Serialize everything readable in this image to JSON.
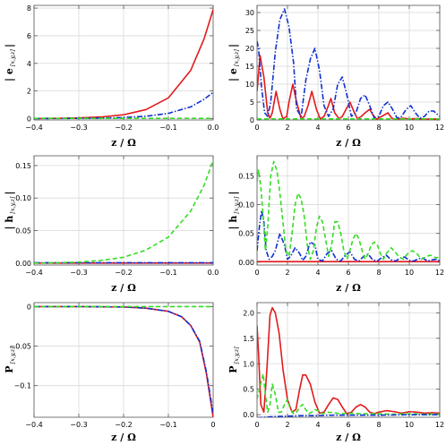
{
  "chart_data": [
    {
      "type": "line",
      "panel": "top-left",
      "ylabel_main": "| e",
      "ylabel_sub": "[x,y,z]",
      "ylabel_end": "|",
      "xlabel": "z / Ω",
      "xlim": [
        -0.4,
        0.0
      ],
      "ylim": [
        -0.1,
        8.2
      ],
      "xticks": [
        -0.4,
        -0.3,
        -0.2,
        -0.1,
        0.0
      ],
      "xtick_labels": [
        "−0.4",
        "−0.3",
        "−0.2",
        "−0.1",
        "0.0"
      ],
      "yticks": [
        0,
        2,
        4,
        6,
        8
      ],
      "ytick_labels": [
        "0",
        "2",
        "4",
        "6",
        "8"
      ],
      "grid": true,
      "series": [
        {
          "color": "#e31a1c",
          "dash": "",
          "x": [
            -0.4,
            -0.35,
            -0.3,
            -0.25,
            -0.2,
            -0.15,
            -0.1,
            -0.05,
            -0.02,
            0.0
          ],
          "y": [
            0.01,
            0.02,
            0.05,
            0.12,
            0.28,
            0.65,
            1.5,
            3.5,
            5.8,
            7.9
          ]
        },
        {
          "color": "#1030d0",
          "dash": "6,2,1.5,2",
          "x": [
            -0.4,
            -0.35,
            -0.3,
            -0.25,
            -0.2,
            -0.15,
            -0.1,
            -0.05,
            -0.02,
            0.0
          ],
          "y": [
            0.0,
            0.01,
            0.02,
            0.04,
            0.08,
            0.17,
            0.38,
            0.85,
            1.4,
            1.9
          ]
        },
        {
          "color": "#33dd22",
          "dash": "5,3",
          "x": [
            -0.4,
            0.0
          ],
          "y": [
            0.02,
            0.02
          ]
        }
      ]
    },
    {
      "type": "line",
      "panel": "top-right",
      "ylabel_main": "| e",
      "ylabel_sub": "[x,y,z]",
      "ylabel_end": "|",
      "xlabel": "z / Ω",
      "xlim": [
        0,
        12
      ],
      "ylim": [
        0,
        32
      ],
      "xticks": [
        0,
        2,
        4,
        6,
        8,
        10,
        12
      ],
      "xtick_labels": [
        "0",
        "2",
        "4",
        "6",
        "8",
        "10",
        "12"
      ],
      "yticks": [
        0,
        5,
        10,
        15,
        20,
        25,
        30
      ],
      "ytick_labels": [
        "0",
        "5",
        "10",
        "15",
        "20",
        "25",
        "30"
      ],
      "grid": true,
      "series": [
        {
          "color": "#e31a1c",
          "dash": "",
          "x": [
            0,
            0.2,
            0.45,
            0.7,
            0.85,
            1.0,
            1.25,
            1.5,
            1.7,
            1.95,
            2.1,
            2.35,
            2.6,
            2.9,
            3.1,
            3.35,
            3.6,
            3.9,
            4.15,
            4.4,
            4.6,
            4.85,
            5.1,
            5.4,
            5.6,
            5.85,
            6.1,
            6.4,
            6.6,
            6.85,
            7.1,
            7.4,
            7.6,
            7.85,
            8.1,
            8.4,
            8.6,
            8.85,
            9.1,
            9.6,
            10.0,
            10.5,
            11.0,
            11.5,
            12.0
          ],
          "y": [
            8,
            18,
            12,
            2,
            0.5,
            2,
            8,
            3,
            0.3,
            1,
            5,
            10,
            5,
            0.3,
            1,
            4,
            8,
            3,
            0.3,
            1,
            3,
            6,
            2,
            0.3,
            1,
            3,
            5,
            2,
            0.3,
            1,
            2,
            3,
            1.5,
            0.2,
            0.8,
            1.5,
            2,
            0.5,
            0.2,
            0.5,
            0.3,
            0.4,
            0.2,
            0.3,
            0.2
          ]
        },
        {
          "color": "#1030d0",
          "dash": "6,2,1.5,2",
          "x": [
            0,
            0.1,
            0.3,
            0.5,
            0.7,
            0.9,
            1.2,
            1.5,
            1.8,
            2.1,
            2.4,
            2.6,
            2.9,
            3.2,
            3.5,
            3.8,
            4.1,
            4.4,
            4.7,
            5.0,
            5.3,
            5.6,
            5.9,
            6.2,
            6.5,
            6.8,
            7.1,
            7.4,
            7.7,
            8.0,
            8.3,
            8.6,
            8.9,
            9.2,
            9.5,
            9.8,
            10.1,
            10.4,
            10.7,
            11.0,
            11.3,
            11.6,
            12.0
          ],
          "y": [
            22,
            20,
            9,
            2,
            1,
            5,
            19,
            28,
            31,
            26,
            16,
            3,
            1,
            11,
            17,
            20,
            14,
            4,
            1,
            3,
            10,
            12,
            7,
            1,
            2,
            6,
            7,
            4,
            0.5,
            1,
            4,
            5,
            3,
            0.5,
            1,
            3,
            4,
            2,
            0.5,
            1,
            2.5,
            2.5,
            1
          ]
        },
        {
          "color": "#33dd22",
          "dash": "5,3",
          "x": [
            0,
            12
          ],
          "y": [
            0.3,
            0.3
          ]
        }
      ]
    },
    {
      "type": "line",
      "panel": "middle-left",
      "ylabel_main": "| h",
      "ylabel_sub": "[x,y,z]",
      "ylabel_end": "|",
      "xlabel": "z / Ω",
      "xlim": [
        -0.4,
        0.0
      ],
      "ylim": [
        -0.003,
        0.165
      ],
      "xticks": [
        -0.4,
        -0.3,
        -0.2,
        -0.1,
        0.0
      ],
      "xtick_labels": [
        "−0.4",
        "−0.3",
        "−0.2",
        "−0.1",
        "0.0"
      ],
      "yticks": [
        0,
        0.05,
        0.1,
        0.15
      ],
      "ytick_labels": [
        "0.00",
        "0.05",
        "0.10",
        "0.15"
      ],
      "grid": true,
      "series": [
        {
          "color": "#e31a1c",
          "dash": "",
          "x": [
            -0.4,
            0.0
          ],
          "y": [
            0.0,
            0.0
          ]
        },
        {
          "color": "#1030d0",
          "dash": "6,2,1.5,2",
          "x": [
            -0.4,
            0.0
          ],
          "y": [
            0.0005,
            0.0005
          ]
        },
        {
          "color": "#33dd22",
          "dash": "5,3",
          "x": [
            -0.4,
            -0.35,
            -0.3,
            -0.25,
            -0.2,
            -0.15,
            -0.1,
            -0.05,
            -0.02,
            0.0
          ],
          "y": [
            0.0,
            0.0005,
            0.0015,
            0.004,
            0.009,
            0.02,
            0.04,
            0.08,
            0.12,
            0.158
          ]
        }
      ]
    },
    {
      "type": "line",
      "panel": "middle-right",
      "ylabel_main": "| h",
      "ylabel_sub": "[x,y,z]",
      "ylabel_end": "|",
      "xlabel": "z / Ω",
      "xlim": [
        0,
        12
      ],
      "ylim": [
        -0.005,
        0.185
      ],
      "xticks": [
        0,
        2,
        4,
        6,
        8,
        10,
        12
      ],
      "xtick_labels": [
        "0",
        "2",
        "4",
        "6",
        "8",
        "10",
        "12"
      ],
      "yticks": [
        0,
        0.05,
        0.1,
        0.15
      ],
      "ytick_labels": [
        "0.00",
        "0.05",
        "0.10",
        "0.15"
      ],
      "grid": true,
      "series": [
        {
          "color": "#e31a1c",
          "dash": "",
          "x": [
            0,
            12
          ],
          "y": [
            0.001,
            0.001
          ]
        },
        {
          "color": "#1030d0",
          "dash": "6,2,1.5,2",
          "x": [
            0,
            0.15,
            0.3,
            0.45,
            0.6,
            0.8,
            1.0,
            1.2,
            1.5,
            1.8,
            2.0,
            2.2,
            2.5,
            2.8,
            3.0,
            3.2,
            3.5,
            3.8,
            4.0,
            4.3,
            4.6,
            4.9,
            5.2,
            5.5,
            5.8,
            6.1,
            6.4,
            6.7,
            7.0,
            7.3,
            7.6,
            7.9,
            8.2,
            8.5,
            8.8,
            9.1,
            9.4,
            9.7,
            10.0,
            10.3,
            10.6,
            10.9,
            11.2,
            11.5,
            11.8,
            12.0
          ],
          "y": [
            0.02,
            0.06,
            0.09,
            0.07,
            0.02,
            0.005,
            0.01,
            0.02,
            0.05,
            0.03,
            0.005,
            0.01,
            0.025,
            0.015,
            0.003,
            0.01,
            0.035,
            0.03,
            0.005,
            0.002,
            0.015,
            0.02,
            0.005,
            0.002,
            0.012,
            0.018,
            0.005,
            0.002,
            0.01,
            0.014,
            0.004,
            0.002,
            0.008,
            0.012,
            0.004,
            0.002,
            0.007,
            0.009,
            0.003,
            0.002,
            0.006,
            0.007,
            0.002,
            0.004,
            0.005,
            0.002
          ]
        },
        {
          "color": "#33dd22",
          "dash": "5,3",
          "x": [
            0,
            0.1,
            0.25,
            0.4,
            0.55,
            0.7,
            0.9,
            1.1,
            1.3,
            1.5,
            1.7,
            1.9,
            2.1,
            2.3,
            2.5,
            2.7,
            2.9,
            3.1,
            3.3,
            3.5,
            3.7,
            3.9,
            4.1,
            4.3,
            4.5,
            4.7,
            4.9,
            5.1,
            5.3,
            5.5,
            5.7,
            5.9,
            6.1,
            6.3,
            6.5,
            6.7,
            6.9,
            7.1,
            7.3,
            7.5,
            7.7,
            7.9,
            8.1,
            8.3,
            8.5,
            8.8,
            9.0,
            9.3,
            9.6,
            9.9,
            10.2,
            10.5,
            10.8,
            11.1,
            11.4,
            11.7,
            12.0
          ],
          "y": [
            0.14,
            0.16,
            0.13,
            0.08,
            0.02,
            0.06,
            0.15,
            0.175,
            0.16,
            0.12,
            0.07,
            0.02,
            0.01,
            0.05,
            0.1,
            0.12,
            0.11,
            0.08,
            0.03,
            0.005,
            0.02,
            0.06,
            0.08,
            0.07,
            0.04,
            0.01,
            0.03,
            0.07,
            0.07,
            0.05,
            0.02,
            0.005,
            0.02,
            0.04,
            0.05,
            0.04,
            0.02,
            0.005,
            0.015,
            0.03,
            0.035,
            0.03,
            0.015,
            0.005,
            0.015,
            0.025,
            0.02,
            0.01,
            0.005,
            0.015,
            0.02,
            0.015,
            0.005,
            0.01,
            0.012,
            0.008,
            0.008
          ]
        }
      ]
    },
    {
      "type": "line",
      "panel": "bottom-left",
      "ylabel_main": "P",
      "ylabel_sub": "[x,y,z]",
      "ylabel_end": "",
      "xlabel": "z / Ω",
      "xlim": [
        -0.4,
        0.0
      ],
      "ylim": [
        -0.14,
        0.005
      ],
      "xticks": [
        -0.4,
        -0.3,
        -0.2,
        -0.1,
        0.0
      ],
      "xtick_labels": [
        "−0.4",
        "−0.3",
        "−0.2",
        "−0.1",
        "0"
      ],
      "yticks": [
        0,
        -0.05,
        -0.1
      ],
      "ytick_labels": [
        "0",
        "−0.05",
        "−0.1"
      ],
      "grid": true,
      "series": [
        {
          "color": "#e31a1c",
          "dash": "",
          "x": [
            -0.4,
            -0.3,
            -0.2,
            -0.15,
            -0.1,
            -0.07,
            -0.05,
            -0.03,
            -0.015,
            0.0
          ],
          "y": [
            0,
            0,
            -0.0005,
            -0.002,
            -0.006,
            -0.013,
            -0.024,
            -0.045,
            -0.085,
            -0.14
          ]
        },
        {
          "color": "#1030d0",
          "dash": "6,2,1.5,2",
          "x": [
            -0.4,
            -0.3,
            -0.2,
            -0.15,
            -0.1,
            -0.07,
            -0.05,
            -0.03,
            -0.015,
            0.0
          ],
          "y": [
            0,
            0,
            -0.0005,
            -0.002,
            -0.006,
            -0.013,
            -0.024,
            -0.044,
            -0.083,
            -0.135
          ]
        },
        {
          "color": "#33dd22",
          "dash": "5,3",
          "x": [
            -0.4,
            0.0
          ],
          "y": [
            0,
            0
          ]
        }
      ]
    },
    {
      "type": "line",
      "panel": "bottom-right",
      "ylabel_main": "P",
      "ylabel_sub": "[x,y,z]",
      "ylabel_end": "",
      "xlabel": "z / Ω",
      "xlim": [
        0,
        12
      ],
      "ylim": [
        -0.05,
        2.2
      ],
      "xticks": [
        0,
        2,
        4,
        6,
        8,
        10,
        12
      ],
      "xtick_labels": [
        "0",
        "2",
        "4",
        "6",
        "8",
        "10",
        "12"
      ],
      "yticks": [
        0,
        0.5,
        1.0,
        1.5,
        2.0
      ],
      "ytick_labels": [
        "0.0",
        "0.5",
        "1.0",
        "1.5",
        "2.0"
      ],
      "grid": true,
      "series": [
        {
          "color": "#e31a1c",
          "dash": "",
          "x": [
            0,
            0.1,
            0.25,
            0.45,
            0.65,
            0.85,
            1.0,
            1.2,
            1.45,
            1.7,
            2.0,
            2.3,
            2.55,
            2.8,
            3.0,
            3.2,
            3.5,
            3.8,
            4.1,
            4.4,
            4.7,
            5.0,
            5.3,
            5.6,
            5.9,
            6.2,
            6.5,
            6.8,
            7.1,
            7.4,
            7.7,
            8.0,
            8.5,
            9.0,
            9.5,
            10.0,
            10.5,
            11.0,
            11.5,
            12.0
          ],
          "y": [
            1.75,
            1.2,
            0.2,
            0.05,
            0.9,
            1.95,
            2.1,
            2.0,
            1.6,
            0.9,
            0.3,
            0.05,
            0.1,
            0.5,
            0.78,
            0.78,
            0.6,
            0.25,
            0.03,
            0.05,
            0.2,
            0.33,
            0.3,
            0.15,
            0.02,
            0.05,
            0.15,
            0.2,
            0.15,
            0.05,
            0.02,
            0.05,
            0.08,
            0.06,
            0.03,
            0.06,
            0.05,
            0.03,
            0.04,
            0.03
          ]
        },
        {
          "color": "#33dd22",
          "dash": "5,3",
          "x": [
            0,
            0.2,
            0.4,
            0.55,
            0.7,
            0.85,
            1.0,
            1.2,
            1.4,
            1.6,
            1.8,
            2.0,
            2.2,
            2.4,
            2.6,
            2.8,
            3.0,
            3.2,
            3.4,
            3.6,
            3.8,
            4.0,
            4.3,
            4.6,
            5.0,
            5.5,
            6.0,
            7.0,
            8.0,
            9.0,
            10.0,
            11.0,
            12.0
          ],
          "y": [
            0.3,
            0.55,
            0.8,
            0.4,
            0.05,
            0.2,
            0.6,
            0.4,
            0.05,
            0.05,
            0.2,
            0.3,
            0.1,
            0.02,
            0.05,
            0.15,
            0.2,
            0.1,
            0.02,
            0.05,
            0.1,
            0.08,
            0.02,
            0.05,
            0.04,
            0.02,
            0.03,
            0.02,
            0.02,
            0.01,
            0.02,
            0.01,
            0.01
          ]
        },
        {
          "color": "#1030d0",
          "dash": "6,2,1.5,2",
          "x": [
            0,
            0.5,
            1.0,
            2.0,
            3.0,
            4.0,
            5.0,
            6.0,
            8.0,
            10.0,
            12.0
          ],
          "y": [
            -0.06,
            -0.05,
            -0.04,
            -0.03,
            -0.02,
            -0.02,
            -0.01,
            -0.01,
            -0.01,
            0.0,
            0.0
          ]
        }
      ]
    }
  ]
}
